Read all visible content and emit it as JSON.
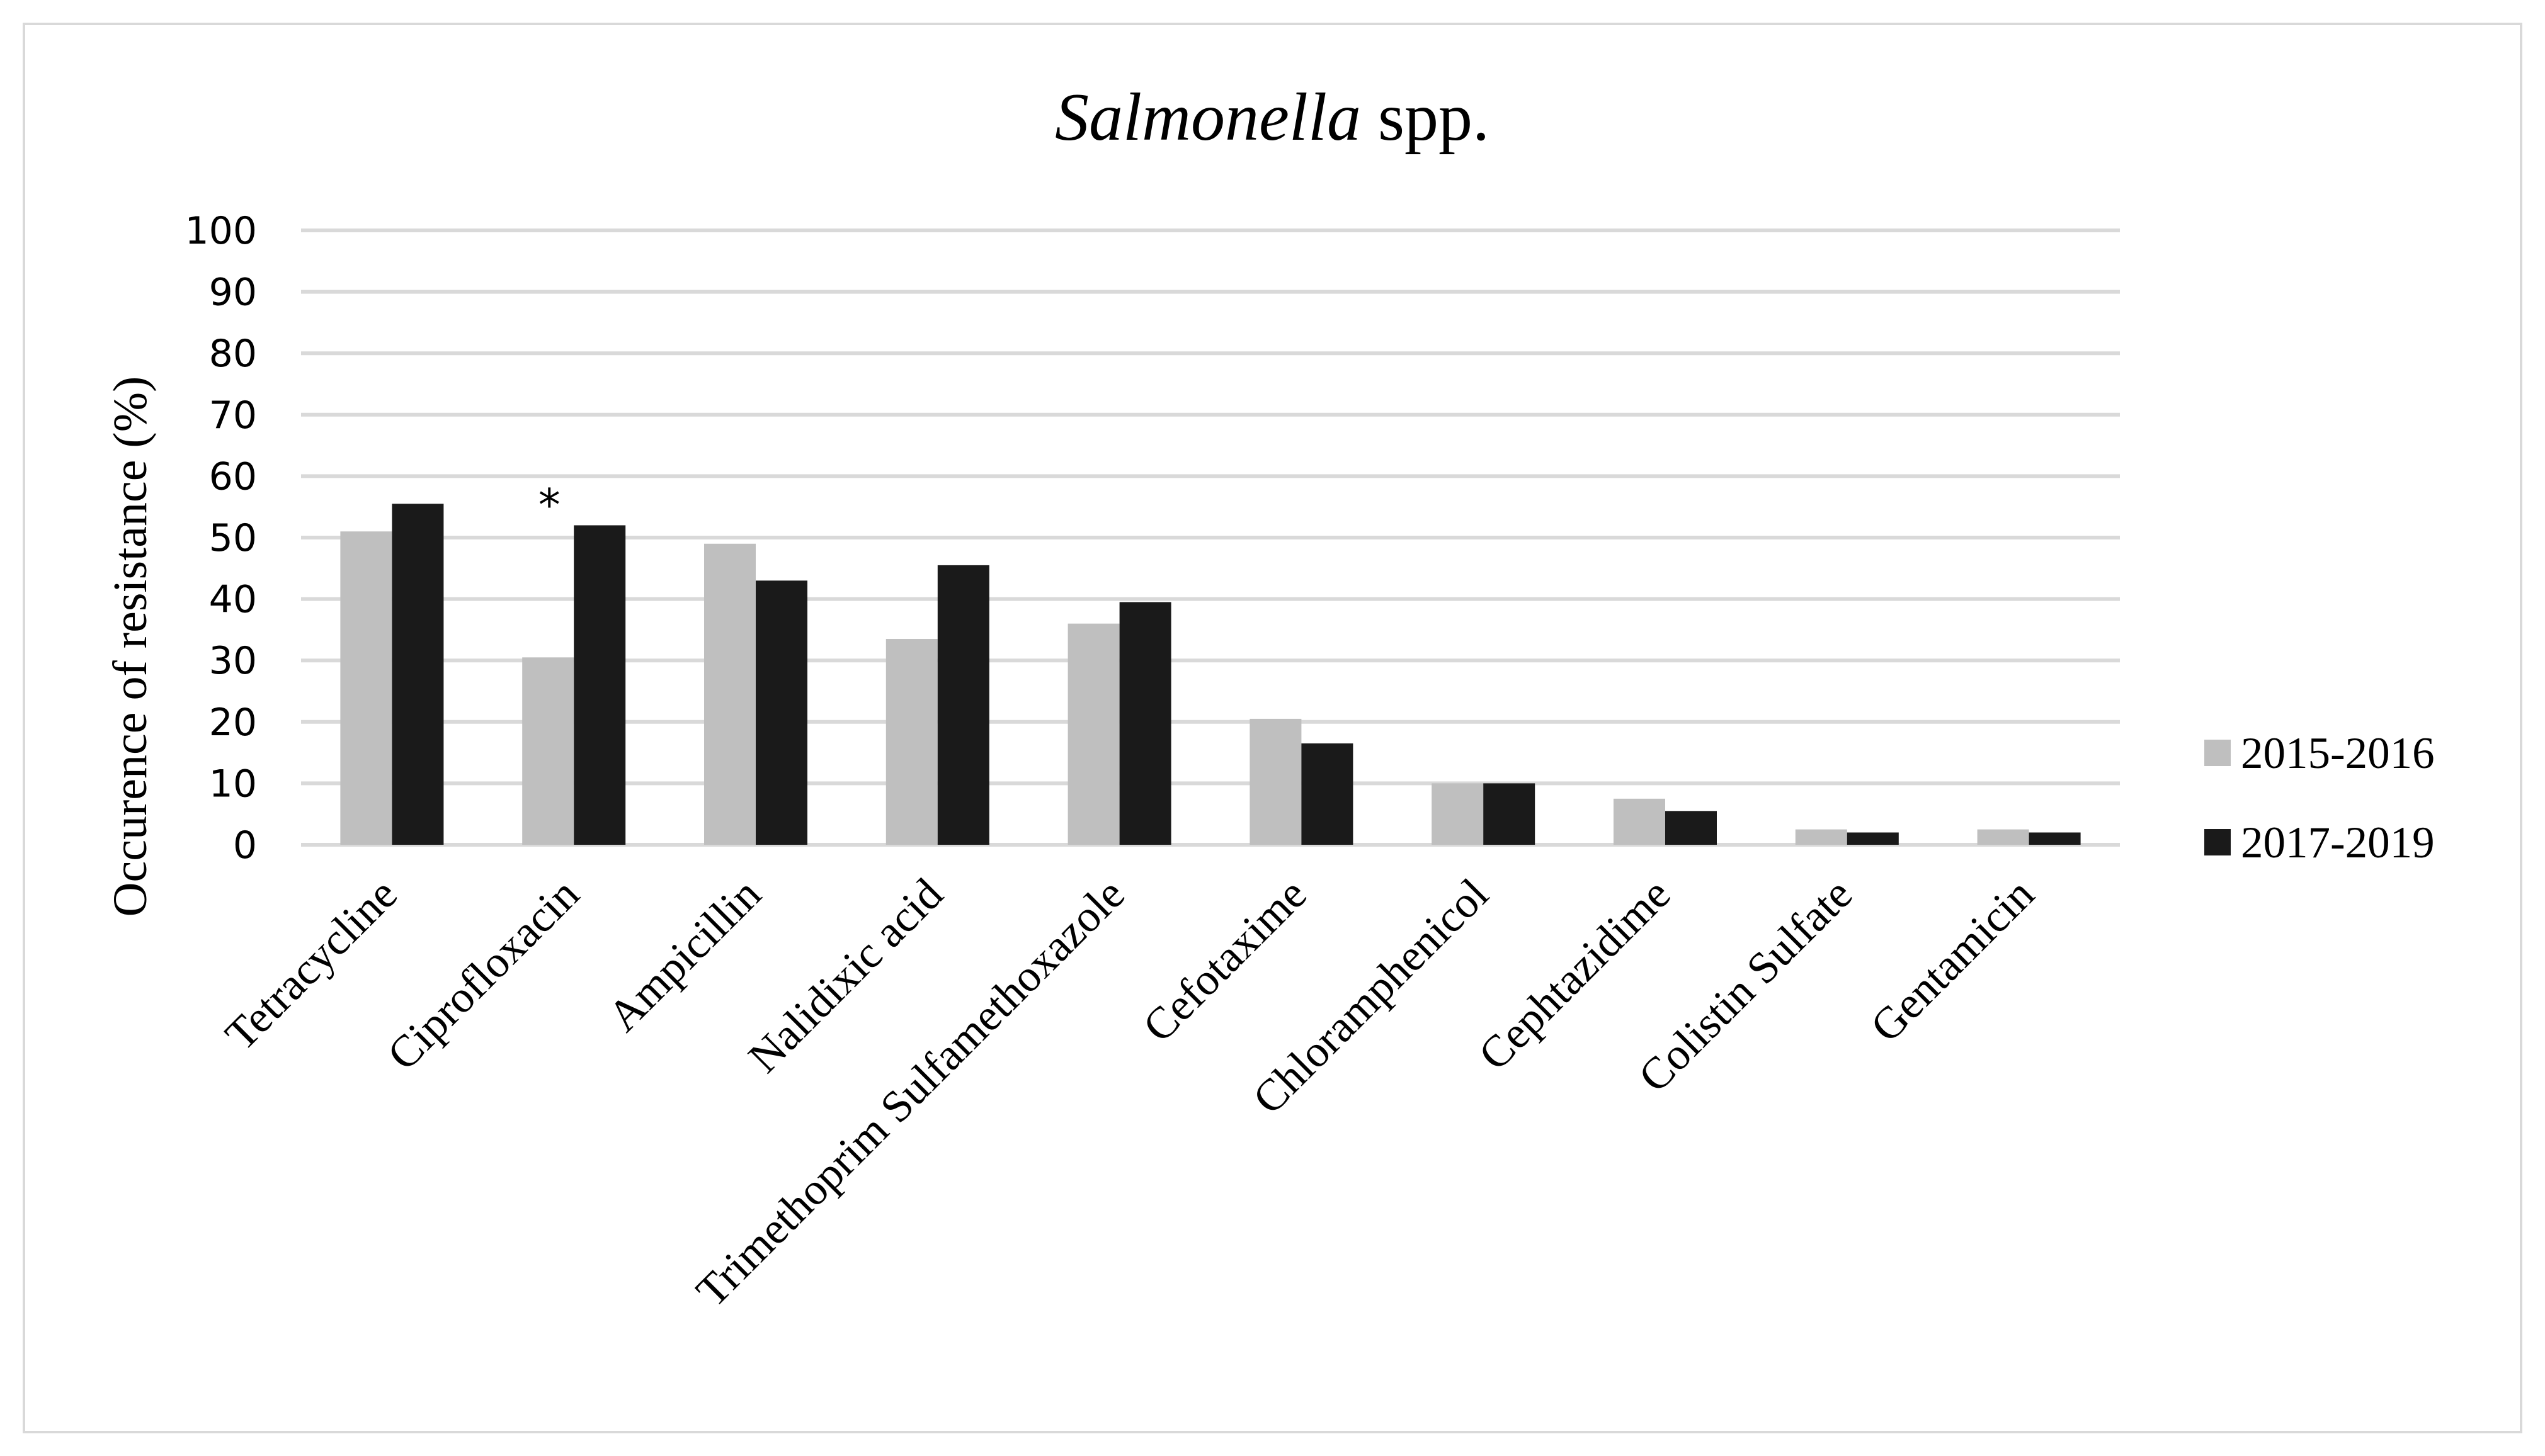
{
  "chart_data": {
    "type": "bar",
    "title": "Salmonella spp.",
    "title_parts": {
      "italic": "Salmonella",
      "normal": " spp."
    },
    "ylabel": "Occurence of resistance (%)",
    "xlabel": "",
    "ylim": [
      0,
      100
    ],
    "yticks": [
      0,
      10,
      20,
      30,
      40,
      50,
      60,
      70,
      80,
      90,
      100
    ],
    "grid": true,
    "legend_position": "right",
    "categories": [
      "Tetracycline",
      "Ciprofloxacin",
      "Ampicillin",
      "Nalidixic acid",
      "Trimethoprim Sulfamethoxazole",
      "Cefotaxime",
      "Chloramphenicol",
      "Cephtazidime",
      "Colistin Sulfate",
      "Gentamicin"
    ],
    "series": [
      {
        "name": "2015-2016",
        "color": "#bfbfbf",
        "values": [
          51,
          30.5,
          49,
          33.5,
          36,
          20.5,
          10,
          7.5,
          2.5,
          2.5
        ]
      },
      {
        "name": "2017-2019",
        "color": "#1a1a1a",
        "values": [
          55.5,
          52,
          43,
          45.5,
          39.5,
          16.5,
          10,
          5.5,
          2,
          2
        ]
      }
    ],
    "annotations": [
      {
        "text": "*",
        "category": "Ciprofloxacin",
        "series": "2017-2019"
      }
    ],
    "colors": {
      "grid": "#d9d9d9",
      "axis": "#d9d9d9",
      "border": "#d9d9d9"
    }
  }
}
